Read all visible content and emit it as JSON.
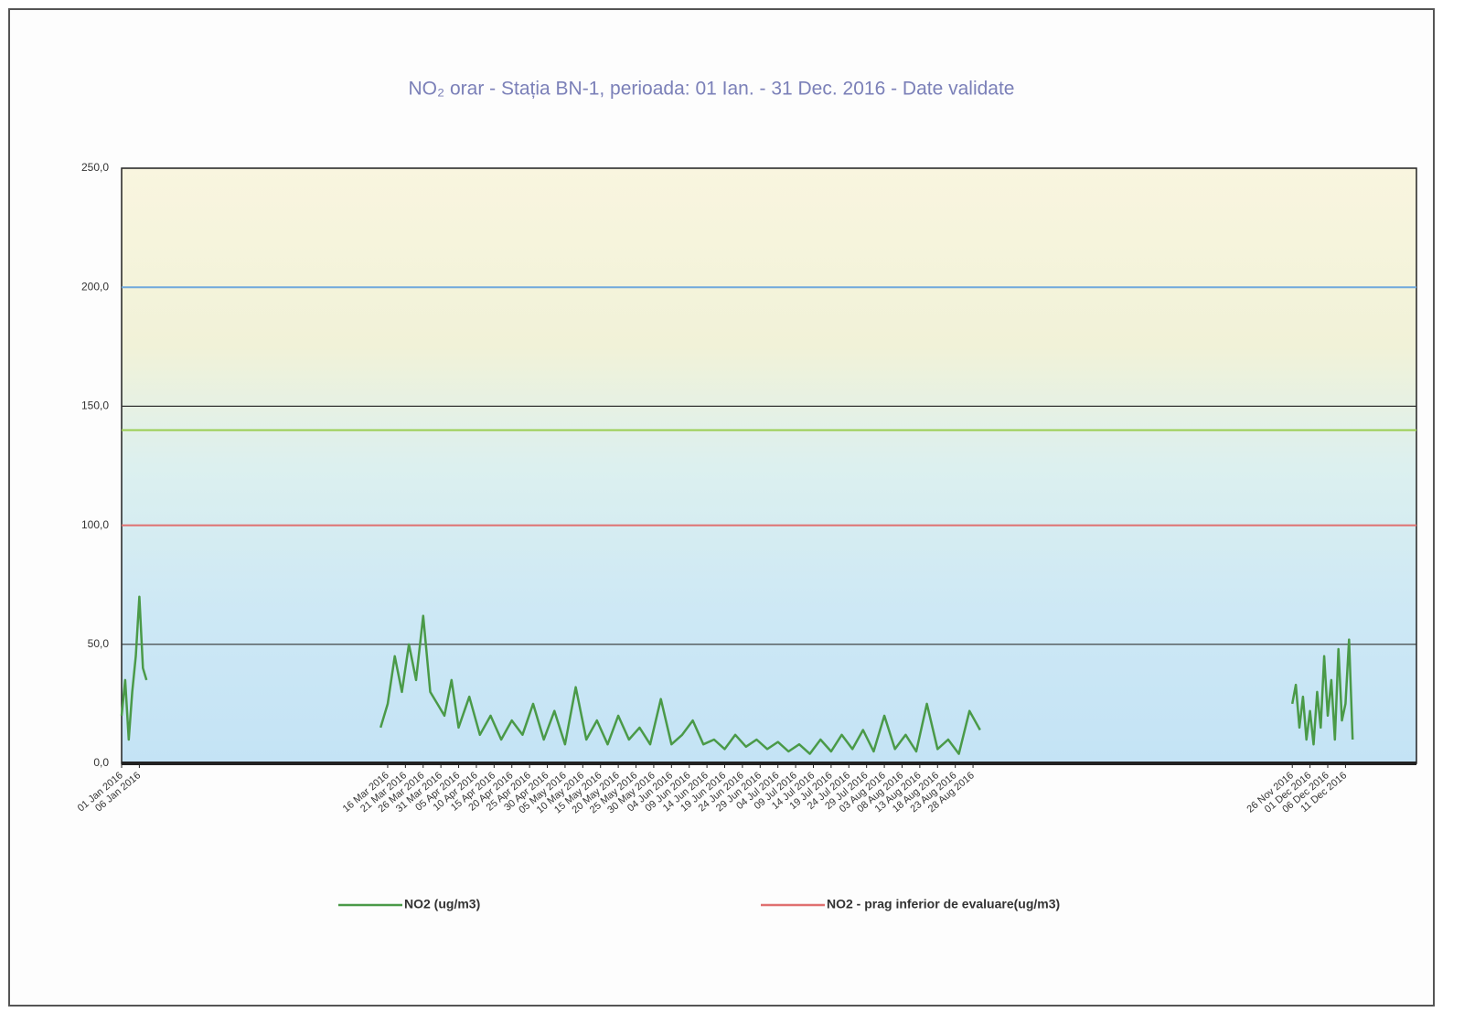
{
  "chart_data": {
    "type": "line",
    "title": "NO₂ orar - Stația BN-1, perioada: 01 Ian. - 31 Dec. 2016 - Date validate",
    "xlim": [
      "2016-01-01",
      "2016-12-31"
    ],
    "ylim": [
      0,
      250
    ],
    "yticks": [
      {
        "value": 0,
        "label": "0,0"
      },
      {
        "value": 50,
        "label": "50,0"
      },
      {
        "value": 100,
        "label": "100,0"
      },
      {
        "value": 150,
        "label": "150,0"
      },
      {
        "value": 200,
        "label": "200,0"
      },
      {
        "value": 250,
        "label": "250,0"
      }
    ],
    "grid": true,
    "xticks": [
      {
        "value": "2016-01-01",
        "label": "01 Jan 2016"
      },
      {
        "value": "2016-01-06",
        "label": "06 Jan 2016"
      },
      {
        "value": "2016-03-16",
        "label": "16 Mar 2016"
      },
      {
        "value": "2016-03-21",
        "label": "21 Mar 2016"
      },
      {
        "value": "2016-03-26",
        "label": "26 Mar 2016"
      },
      {
        "value": "2016-03-31",
        "label": "31 Mar 2016"
      },
      {
        "value": "2016-04-05",
        "label": "05 Apr 2016"
      },
      {
        "value": "2016-04-10",
        "label": "10 Apr 2016"
      },
      {
        "value": "2016-04-15",
        "label": "15 Apr 2016"
      },
      {
        "value": "2016-04-20",
        "label": "20 Apr 2016"
      },
      {
        "value": "2016-04-25",
        "label": "25 Apr 2016"
      },
      {
        "value": "2016-04-30",
        "label": "30 Apr 2016"
      },
      {
        "value": "2016-05-05",
        "label": "05 May 2016"
      },
      {
        "value": "2016-05-10",
        "label": "10 May 2016"
      },
      {
        "value": "2016-05-15",
        "label": "15 May 2016"
      },
      {
        "value": "2016-05-20",
        "label": "20 May 2016"
      },
      {
        "value": "2016-05-25",
        "label": "25 May 2016"
      },
      {
        "value": "2016-05-30",
        "label": "30 May 2016"
      },
      {
        "value": "2016-06-04",
        "label": "04 Jun 2016"
      },
      {
        "value": "2016-06-09",
        "label": "09 Jun 2016"
      },
      {
        "value": "2016-06-14",
        "label": "14 Jun 2016"
      },
      {
        "value": "2016-06-19",
        "label": "19 Jun 2016"
      },
      {
        "value": "2016-06-24",
        "label": "24 Jun 2016"
      },
      {
        "value": "2016-06-29",
        "label": "29 Jun 2016"
      },
      {
        "value": "2016-07-04",
        "label": "04 Jul 2016"
      },
      {
        "value": "2016-07-09",
        "label": "09 Jul 2016"
      },
      {
        "value": "2016-07-14",
        "label": "14 Jul 2016"
      },
      {
        "value": "2016-07-19",
        "label": "19 Jul 2016"
      },
      {
        "value": "2016-07-24",
        "label": "24 Jul 2016"
      },
      {
        "value": "2016-07-29",
        "label": "29 Jul 2016"
      },
      {
        "value": "2016-08-03",
        "label": "03 Aug 2016"
      },
      {
        "value": "2016-08-08",
        "label": "08 Aug 2016"
      },
      {
        "value": "2016-08-13",
        "label": "13 Aug 2016"
      },
      {
        "value": "2016-08-18",
        "label": "18 Aug 2016"
      },
      {
        "value": "2016-08-23",
        "label": "23 Aug 2016"
      },
      {
        "value": "2016-08-28",
        "label": "28 Aug 2016"
      },
      {
        "value": "2016-11-26",
        "label": "26 Nov 2016"
      },
      {
        "value": "2016-12-01",
        "label": "01 Dec 2016"
      },
      {
        "value": "2016-12-06",
        "label": "06 Dec 2016"
      },
      {
        "value": "2016-12-11",
        "label": "11 Dec 2016"
      }
    ],
    "x": [
      "2016-01-01",
      "2016-01-02",
      "2016-01-03",
      "2016-01-04",
      "2016-01-05",
      "2016-01-06",
      "2016-01-07",
      "2016-01-08",
      "2016-02-01",
      "2016-03-14",
      "2016-03-16",
      "2016-03-18",
      "2016-03-20",
      "2016-03-22",
      "2016-03-24",
      "2016-03-26",
      "2016-03-28",
      "2016-03-30",
      "2016-04-01",
      "2016-04-03",
      "2016-04-05",
      "2016-04-08",
      "2016-04-11",
      "2016-04-14",
      "2016-04-17",
      "2016-04-20",
      "2016-04-23",
      "2016-04-26",
      "2016-04-29",
      "2016-05-02",
      "2016-05-05",
      "2016-05-08",
      "2016-05-11",
      "2016-05-14",
      "2016-05-17",
      "2016-05-20",
      "2016-05-23",
      "2016-05-26",
      "2016-05-29",
      "2016-06-01",
      "2016-06-04",
      "2016-06-07",
      "2016-06-10",
      "2016-06-13",
      "2016-06-16",
      "2016-06-19",
      "2016-06-22",
      "2016-06-25",
      "2016-06-28",
      "2016-07-01",
      "2016-07-04",
      "2016-07-07",
      "2016-07-10",
      "2016-07-13",
      "2016-07-16",
      "2016-07-19",
      "2016-07-22",
      "2016-07-25",
      "2016-07-28",
      "2016-07-31",
      "2016-08-03",
      "2016-08-06",
      "2016-08-09",
      "2016-08-12",
      "2016-08-15",
      "2016-08-18",
      "2016-08-21",
      "2016-08-24",
      "2016-08-27",
      "2016-08-30",
      "2016-10-01",
      "2016-11-26",
      "2016-11-27",
      "2016-11-28",
      "2016-11-29",
      "2016-11-30",
      "2016-12-01",
      "2016-12-02",
      "2016-12-03",
      "2016-12-04",
      "2016-12-05",
      "2016-12-06",
      "2016-12-07",
      "2016-12-08",
      "2016-12-09",
      "2016-12-10",
      "2016-12-11",
      "2016-12-12",
      "2016-12-13"
    ],
    "series": [
      {
        "name": "NO2 (ug/m3)",
        "color": "#4a9a48",
        "values": [
          20,
          35,
          10,
          30,
          45,
          70,
          40,
          35,
          null,
          15,
          25,
          45,
          30,
          50,
          35,
          62,
          30,
          25,
          20,
          35,
          15,
          28,
          12,
          20,
          10,
          18,
          12,
          25,
          10,
          22,
          8,
          32,
          10,
          18,
          8,
          20,
          10,
          15,
          8,
          27,
          8,
          12,
          18,
          8,
          10,
          6,
          12,
          7,
          10,
          6,
          9,
          5,
          8,
          4,
          10,
          5,
          12,
          6,
          14,
          5,
          20,
          6,
          12,
          5,
          25,
          6,
          10,
          4,
          22,
          14,
          null,
          25,
          33,
          15,
          28,
          10,
          22,
          8,
          30,
          15,
          45,
          20,
          35,
          10,
          48,
          18,
          25,
          52,
          10
        ]
      }
    ],
    "threshold_lines": [
      {
        "name": "NO2 - prag inferior de evaluare(ug/m3)",
        "color": "#e07070",
        "value": 100
      },
      {
        "color": "#9acd50",
        "value": 140
      },
      {
        "color": "#6fa8dc",
        "value": 200
      }
    ]
  }
}
